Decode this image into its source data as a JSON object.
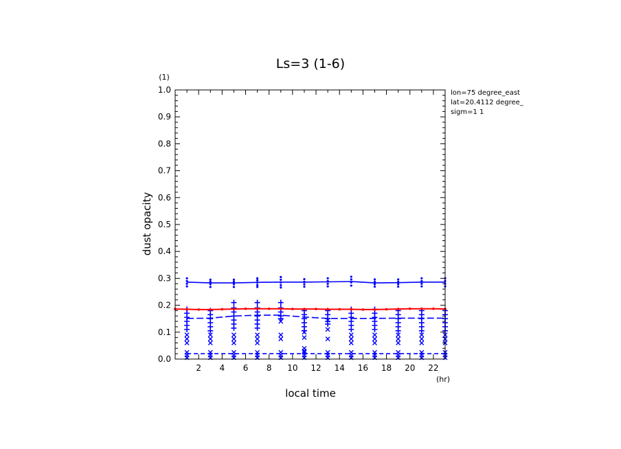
{
  "chart_data": {
    "type": "line",
    "title": "Ls=3 (1-6)",
    "xlabel": "local time",
    "ylabel": "dust opacity",
    "x_unit": "(hr)",
    "y_unit": "(1)",
    "xlim": [
      0,
      23
    ],
    "ylim": [
      0,
      1.0
    ],
    "x_ticks": [
      2,
      4,
      6,
      8,
      10,
      12,
      14,
      16,
      18,
      20,
      22
    ],
    "y_ticks": [
      0.0,
      0.1,
      0.2,
      0.3,
      0.4,
      0.5,
      0.6,
      0.7,
      0.8,
      0.9,
      1.0
    ],
    "y_tick_labels": [
      "0.0",
      "0.1",
      "0.2",
      "0.3",
      "0.4",
      "0.5",
      "0.6",
      "0.7",
      "0.8",
      "0.9",
      "1.0"
    ],
    "info_lines": [
      "lon=75 degree_east",
      "lat=20.4112 degree_",
      "sigm=1 1"
    ],
    "grid": false,
    "series": [
      {
        "style": "solid",
        "color": "#0000ff",
        "x": [
          1,
          3,
          5,
          7,
          9,
          11,
          13,
          15,
          17,
          19,
          21,
          23
        ],
        "y": [
          0.286,
          0.283,
          0.283,
          0.285,
          0.286,
          0.286,
          0.287,
          0.288,
          0.283,
          0.284,
          0.286,
          0.286
        ]
      },
      {
        "style": "solid",
        "color": "#ff0000",
        "marker": "dot",
        "x": [
          0,
          1,
          2,
          3,
          4,
          5,
          6,
          7,
          8,
          9,
          10,
          11,
          12,
          13,
          14,
          15,
          16,
          17,
          18,
          19,
          20,
          21,
          22,
          23
        ],
        "y": [
          0.186,
          0.185,
          0.184,
          0.184,
          0.185,
          0.186,
          0.187,
          0.187,
          0.187,
          0.187,
          0.186,
          0.186,
          0.186,
          0.185,
          0.185,
          0.185,
          0.184,
          0.184,
          0.185,
          0.186,
          0.187,
          0.187,
          0.187,
          0.186
        ]
      },
      {
        "style": "dashed",
        "color": "#0000ff",
        "x": [
          1,
          3,
          5,
          7,
          9,
          11,
          13,
          15,
          17,
          19,
          21,
          23
        ],
        "y": [
          0.151,
          0.152,
          0.16,
          0.163,
          0.163,
          0.156,
          0.151,
          0.151,
          0.151,
          0.152,
          0.152,
          0.152
        ]
      },
      {
        "style": "dashed",
        "color": "#0000ff",
        "x": [
          1,
          3,
          5,
          7,
          9,
          11,
          13,
          15,
          17,
          19,
          21,
          23
        ],
        "y": [
          0.02,
          0.02,
          0.02,
          0.02,
          0.02,
          0.02,
          0.02,
          0.02,
          0.02,
          0.02,
          0.02,
          0.02
        ]
      }
    ],
    "scatter_points": [
      {
        "marker": "dot",
        "x": 1,
        "y": [
          0.3,
          0.29,
          0.28,
          0.27
        ]
      },
      {
        "marker": "dot",
        "x": 3,
        "y": [
          0.295,
          0.287,
          0.278,
          0.268
        ]
      },
      {
        "marker": "dot",
        "x": 5,
        "y": [
          0.295,
          0.287,
          0.278,
          0.268
        ]
      },
      {
        "marker": "dot",
        "x": 7,
        "y": [
          0.3,
          0.292,
          0.284,
          0.275,
          0.268
        ]
      },
      {
        "marker": "dot",
        "x": 9,
        "y": [
          0.305,
          0.295,
          0.285,
          0.275,
          0.266
        ]
      },
      {
        "marker": "dot",
        "x": 11,
        "y": [
          0.297,
          0.287,
          0.278,
          0.269
        ]
      },
      {
        "marker": "dot",
        "x": 13,
        "y": [
          0.3,
          0.29,
          0.28,
          0.27
        ]
      },
      {
        "marker": "dot",
        "x": 15,
        "y": [
          0.306,
          0.296,
          0.285,
          0.273
        ]
      },
      {
        "marker": "dot",
        "x": 17,
        "y": [
          0.296,
          0.287,
          0.278,
          0.269
        ]
      },
      {
        "marker": "dot",
        "x": 19,
        "y": [
          0.296,
          0.287,
          0.278,
          0.269
        ]
      },
      {
        "marker": "dot",
        "x": 21,
        "y": [
          0.3,
          0.29,
          0.28,
          0.27
        ]
      },
      {
        "marker": "dot",
        "x": 23,
        "y": [
          0.3,
          0.29,
          0.28,
          0.27
        ]
      },
      {
        "marker": "plus",
        "x": 1,
        "y": [
          0.185,
          0.17,
          0.155,
          0.14,
          0.125,
          0.11
        ]
      },
      {
        "marker": "plus",
        "x": 3,
        "y": [
          0.18,
          0.165,
          0.15,
          0.135,
          0.12,
          0.105
        ]
      },
      {
        "marker": "plus",
        "x": 5,
        "y": [
          0.21,
          0.19,
          0.175,
          0.16,
          0.145,
          0.13,
          0.115
        ]
      },
      {
        "marker": "plus",
        "x": 7,
        "y": [
          0.21,
          0.19,
          0.175,
          0.16,
          0.145,
          0.13,
          0.115
        ]
      },
      {
        "marker": "plus",
        "x": 9,
        "y": [
          0.21,
          0.19,
          0.175,
          0.16,
          0.15
        ]
      },
      {
        "marker": "plus",
        "x": 11,
        "y": [
          0.18,
          0.165,
          0.15,
          0.135,
          0.12,
          0.105
        ]
      },
      {
        "marker": "plus",
        "x": 13,
        "y": [
          0.18,
          0.165,
          0.15,
          0.14,
          0.13
        ]
      },
      {
        "marker": "plus",
        "x": 15,
        "y": [
          0.185,
          0.17,
          0.155,
          0.14,
          0.125,
          0.11
        ]
      },
      {
        "marker": "plus",
        "x": 17,
        "y": [
          0.185,
          0.17,
          0.155,
          0.14,
          0.125,
          0.11
        ]
      },
      {
        "marker": "plus",
        "x": 19,
        "y": [
          0.18,
          0.165,
          0.15,
          0.135,
          0.12,
          0.105
        ]
      },
      {
        "marker": "plus",
        "x": 21,
        "y": [
          0.18,
          0.165,
          0.15,
          0.135,
          0.12,
          0.105
        ]
      },
      {
        "marker": "plus",
        "x": 23,
        "y": [
          0.18,
          0.165,
          0.15,
          0.135,
          0.12,
          0.105
        ]
      },
      {
        "marker": "cross",
        "x": 1,
        "y": [
          0.09,
          0.075,
          0.06
        ]
      },
      {
        "marker": "cross",
        "x": 3,
        "y": [
          0.09,
          0.075,
          0.06
        ]
      },
      {
        "marker": "cross",
        "x": 5,
        "y": [
          0.09,
          0.075,
          0.06
        ]
      },
      {
        "marker": "cross",
        "x": 7,
        "y": [
          0.09,
          0.075,
          0.06
        ]
      },
      {
        "marker": "cross",
        "x": 9,
        "y": [
          0.14,
          0.09,
          0.075
        ]
      },
      {
        "marker": "cross",
        "x": 11,
        "y": [
          0.1,
          0.08,
          0.04,
          0.03
        ]
      },
      {
        "marker": "cross",
        "x": 13,
        "y": [
          0.145,
          0.11,
          0.075
        ]
      },
      {
        "marker": "cross",
        "x": 15,
        "y": [
          0.09,
          0.075,
          0.06
        ]
      },
      {
        "marker": "cross",
        "x": 17,
        "y": [
          0.09,
          0.075,
          0.06
        ]
      },
      {
        "marker": "cross",
        "x": 19,
        "y": [
          0.09,
          0.075,
          0.06
        ]
      },
      {
        "marker": "cross",
        "x": 21,
        "y": [
          0.09,
          0.075,
          0.06
        ]
      },
      {
        "marker": "cross",
        "x": 23,
        "y": [
          0.09,
          0.075,
          0.06
        ]
      },
      {
        "marker": "cross",
        "x": 1,
        "y": [
          0.025,
          0.015,
          0.005
        ]
      },
      {
        "marker": "cross",
        "x": 3,
        "y": [
          0.025,
          0.015,
          0.005
        ]
      },
      {
        "marker": "cross",
        "x": 5,
        "y": [
          0.025,
          0.015,
          0.005
        ]
      },
      {
        "marker": "cross",
        "x": 7,
        "y": [
          0.025,
          0.015,
          0.005
        ]
      },
      {
        "marker": "cross",
        "x": 9,
        "y": [
          0.025,
          0.015,
          0.005
        ]
      },
      {
        "marker": "cross",
        "x": 11,
        "y": [
          0.025,
          0.015,
          0.005
        ]
      },
      {
        "marker": "cross",
        "x": 13,
        "y": [
          0.025,
          0.015,
          0.005
        ]
      },
      {
        "marker": "cross",
        "x": 15,
        "y": [
          0.025,
          0.015,
          0.005
        ]
      },
      {
        "marker": "cross",
        "x": 17,
        "y": [
          0.025,
          0.015,
          0.005
        ]
      },
      {
        "marker": "cross",
        "x": 19,
        "y": [
          0.025,
          0.015,
          0.005
        ]
      },
      {
        "marker": "cross",
        "x": 21,
        "y": [
          0.025,
          0.015,
          0.005
        ]
      },
      {
        "marker": "cross",
        "x": 23,
        "y": [
          0.025,
          0.015,
          0.005
        ]
      }
    ]
  }
}
